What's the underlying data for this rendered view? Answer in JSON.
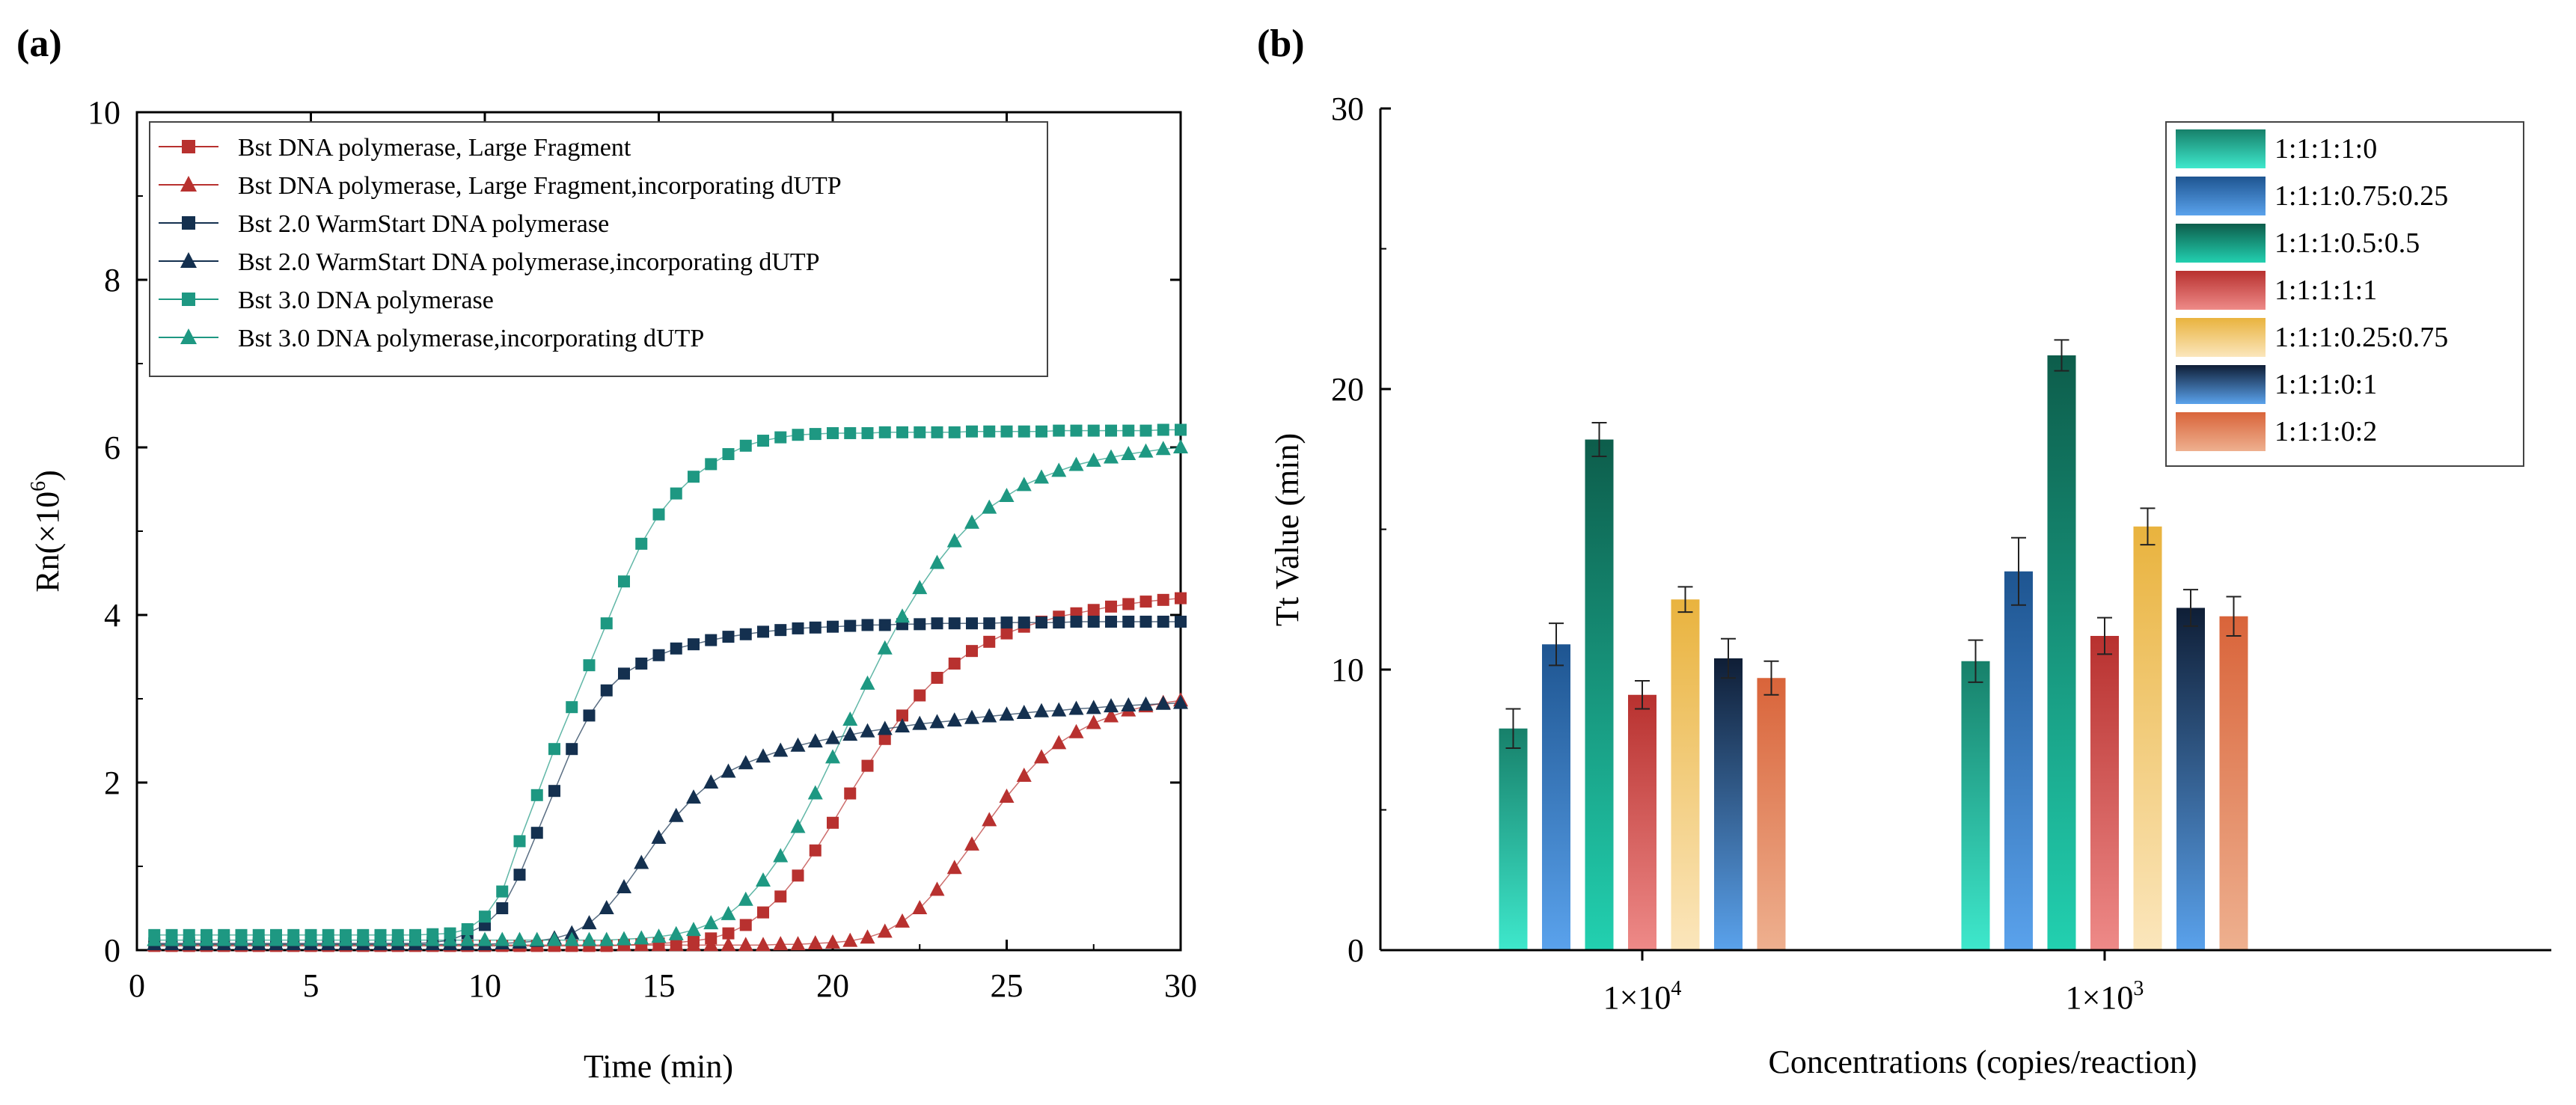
{
  "panels": {
    "a_label": "(a)",
    "b_label": "(b)"
  },
  "chart_data": [
    {
      "type": "line",
      "xlabel": "Time (min)",
      "ylabel_main": "Rn(×10",
      "ylabel_sup": "6",
      "ylabel_close": ")",
      "xlim": [
        0,
        30
      ],
      "ylim": [
        0,
        10
      ],
      "xticks": [
        0,
        5,
        10,
        15,
        20,
        25,
        30
      ],
      "yticks": [
        0,
        2,
        4,
        6,
        8,
        10
      ],
      "legend_position": "top-left",
      "x": [
        0.5,
        1.0,
        1.5,
        2.0,
        2.5,
        3.0,
        3.5,
        4.0,
        4.5,
        5.0,
        5.5,
        6.0,
        6.5,
        7.0,
        7.5,
        8.0,
        8.5,
        9.0,
        9.5,
        10.0,
        10.5,
        11.0,
        11.5,
        12.0,
        12.5,
        13.0,
        13.5,
        14.0,
        14.5,
        15.0,
        15.5,
        16.0,
        16.5,
        17.0,
        17.5,
        18.0,
        18.5,
        19.0,
        19.5,
        20.0,
        20.5,
        21.0,
        21.5,
        22.0,
        22.5,
        23.0,
        23.5,
        24.0,
        24.5,
        25.0,
        25.5,
        26.0,
        26.5,
        27.0,
        27.5,
        28.0,
        28.5,
        29.0,
        29.5,
        30.0
      ],
      "series": [
        {
          "name": "Bst DNA polymerase, Large Fragment",
          "marker": "square",
          "color": "#b8312f",
          "values": [
            0.05,
            0.05,
            0.05,
            0.05,
            0.05,
            0.05,
            0.05,
            0.05,
            0.05,
            0.05,
            0.05,
            0.05,
            0.05,
            0.05,
            0.05,
            0.05,
            0.05,
            0.05,
            0.05,
            0.05,
            0.05,
            0.05,
            0.05,
            0.05,
            0.05,
            0.05,
            0.05,
            0.06,
            0.07,
            0.08,
            0.09,
            0.11,
            0.14,
            0.2,
            0.3,
            0.45,
            0.64,
            0.89,
            1.19,
            1.52,
            1.87,
            2.2,
            2.52,
            2.8,
            3.04,
            3.25,
            3.42,
            3.57,
            3.68,
            3.78,
            3.86,
            3.92,
            3.98,
            4.02,
            4.06,
            4.1,
            4.13,
            4.16,
            4.18,
            4.2
          ]
        },
        {
          "name": "Bst DNA polymerase, Large Fragment,incorporating dUTP",
          "marker": "triangle",
          "color": "#b8312f",
          "values": [
            0.06,
            0.06,
            0.06,
            0.06,
            0.06,
            0.06,
            0.06,
            0.06,
            0.06,
            0.06,
            0.06,
            0.06,
            0.06,
            0.06,
            0.06,
            0.06,
            0.06,
            0.06,
            0.06,
            0.06,
            0.06,
            0.06,
            0.06,
            0.06,
            0.06,
            0.06,
            0.06,
            0.06,
            0.06,
            0.06,
            0.06,
            0.06,
            0.06,
            0.06,
            0.06,
            0.06,
            0.07,
            0.07,
            0.08,
            0.09,
            0.11,
            0.15,
            0.22,
            0.34,
            0.5,
            0.72,
            0.98,
            1.26,
            1.55,
            1.83,
            2.08,
            2.3,
            2.47,
            2.6,
            2.71,
            2.79,
            2.86,
            2.91,
            2.95,
            2.98
          ]
        },
        {
          "name": "Bst 2.0 WarmStart DNA polymerase",
          "marker": "square",
          "color": "#14304f",
          "values": [
            0.08,
            0.08,
            0.08,
            0.08,
            0.08,
            0.08,
            0.08,
            0.08,
            0.08,
            0.08,
            0.08,
            0.08,
            0.08,
            0.08,
            0.08,
            0.08,
            0.09,
            0.12,
            0.2,
            0.3,
            0.5,
            0.9,
            1.4,
            1.9,
            2.4,
            2.8,
            3.1,
            3.3,
            3.42,
            3.52,
            3.6,
            3.65,
            3.7,
            3.74,
            3.77,
            3.8,
            3.82,
            3.84,
            3.85,
            3.86,
            3.87,
            3.88,
            3.88,
            3.89,
            3.89,
            3.9,
            3.9,
            3.9,
            3.9,
            3.91,
            3.91,
            3.91,
            3.91,
            3.92,
            3.92,
            3.92,
            3.92,
            3.92,
            3.92,
            3.92
          ]
        },
        {
          "name": "Bst 2.0 WarmStart DNA polymerase,incorporating dUTP",
          "marker": "triangle",
          "color": "#14304f",
          "values": [
            0.07,
            0.07,
            0.07,
            0.07,
            0.07,
            0.07,
            0.07,
            0.07,
            0.07,
            0.07,
            0.07,
            0.07,
            0.07,
            0.07,
            0.07,
            0.07,
            0.07,
            0.07,
            0.07,
            0.07,
            0.08,
            0.09,
            0.11,
            0.14,
            0.2,
            0.32,
            0.5,
            0.75,
            1.04,
            1.34,
            1.6,
            1.82,
            2.0,
            2.13,
            2.23,
            2.31,
            2.38,
            2.44,
            2.49,
            2.53,
            2.57,
            2.61,
            2.64,
            2.67,
            2.7,
            2.72,
            2.74,
            2.77,
            2.79,
            2.81,
            2.83,
            2.85,
            2.86,
            2.88,
            2.89,
            2.91,
            2.92,
            2.93,
            2.94,
            2.95
          ]
        },
        {
          "name": "Bst 3.0 DNA polymerase",
          "marker": "square",
          "color": "#1e9882",
          "values": [
            0.18,
            0.18,
            0.18,
            0.18,
            0.18,
            0.18,
            0.18,
            0.18,
            0.18,
            0.18,
            0.18,
            0.18,
            0.18,
            0.18,
            0.18,
            0.18,
            0.19,
            0.2,
            0.25,
            0.4,
            0.7,
            1.3,
            1.85,
            2.4,
            2.9,
            3.4,
            3.9,
            4.4,
            4.85,
            5.2,
            5.45,
            5.65,
            5.8,
            5.92,
            6.02,
            6.08,
            6.12,
            6.15,
            6.16,
            6.17,
            6.17,
            6.17,
            6.18,
            6.18,
            6.18,
            6.18,
            6.18,
            6.19,
            6.19,
            6.19,
            6.19,
            6.19,
            6.2,
            6.2,
            6.2,
            6.2,
            6.2,
            6.2,
            6.21,
            6.21
          ]
        },
        {
          "name": "Bst 3.0 DNA polymerase,incorporating dUTP",
          "marker": "triangle",
          "color": "#1e9882",
          "values": [
            0.12,
            0.12,
            0.12,
            0.12,
            0.12,
            0.12,
            0.12,
            0.12,
            0.12,
            0.12,
            0.12,
            0.12,
            0.12,
            0.12,
            0.12,
            0.12,
            0.12,
            0.12,
            0.12,
            0.12,
            0.12,
            0.12,
            0.12,
            0.12,
            0.12,
            0.12,
            0.12,
            0.13,
            0.14,
            0.16,
            0.19,
            0.24,
            0.32,
            0.43,
            0.6,
            0.83,
            1.12,
            1.47,
            1.87,
            2.3,
            2.75,
            3.18,
            3.6,
            3.98,
            4.32,
            4.62,
            4.88,
            5.1,
            5.28,
            5.42,
            5.55,
            5.64,
            5.72,
            5.79,
            5.84,
            5.88,
            5.92,
            5.95,
            5.98,
            6.0
          ]
        }
      ]
    },
    {
      "type": "bar",
      "xlabel": "Concentrations (copies/reaction)",
      "ylabel": "Tt Value (min)",
      "ylim": [
        0,
        30
      ],
      "yticks": [
        0,
        10,
        20,
        30
      ],
      "legend_position": "top-right",
      "categories": [
        {
          "base": "1×10",
          "exp": "4"
        },
        {
          "base": "1×10",
          "exp": "3"
        }
      ],
      "series": [
        {
          "name": "1:1:1:1:0",
          "color_top": "#17806a",
          "color_bottom": "#3ee8cc",
          "values": [
            7.9,
            10.3
          ],
          "errors": [
            0.7,
            0.75
          ]
        },
        {
          "name": "1:1:1:0.75:0.25",
          "color_top": "#1e5591",
          "color_bottom": "#5aa2ec",
          "values": [
            10.9,
            13.5
          ],
          "errors": [
            0.75,
            1.2
          ]
        },
        {
          "name": "1:1:1:0.5:0.5",
          "color_top": "#0d5d4b",
          "color_bottom": "#22d0b0",
          "values": [
            18.2,
            21.2
          ],
          "errors": [
            0.6,
            0.55
          ]
        },
        {
          "name": "1:1:1:1:1",
          "color_top": "#b8312f",
          "color_bottom": "#ee8a88",
          "values": [
            9.1,
            11.2
          ],
          "errors": [
            0.5,
            0.65
          ]
        },
        {
          "name": "1:1:1:0.25:0.75",
          "color_top": "#e9b33e",
          "color_bottom": "#fbe6bc",
          "values": [
            12.5,
            15.1
          ],
          "errors": [
            0.45,
            0.65
          ]
        },
        {
          "name": "1:1:1:0:1",
          "color_top": "#0f1e36",
          "color_bottom": "#5aa2ec",
          "values": [
            10.4,
            12.2
          ],
          "errors": [
            0.7,
            0.65
          ]
        },
        {
          "name": "1:1:1:0:2",
          "color_top": "#d9643a",
          "color_bottom": "#eeb08f",
          "values": [
            9.7,
            11.9
          ],
          "errors": [
            0.6,
            0.7
          ]
        }
      ]
    }
  ]
}
